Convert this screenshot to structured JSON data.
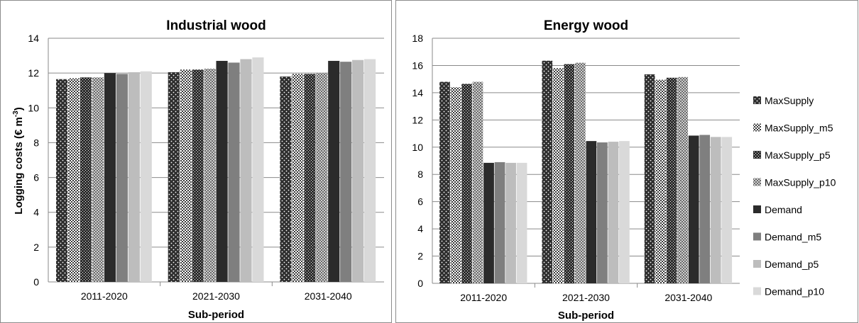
{
  "ylabel_main": "Logging costs (€ m",
  "ylabel_sup": "-3",
  "ylabel_end": ")",
  "legend": {
    "placement": "right",
    "entries": [
      "MaxSupply",
      "MaxSupply_m5",
      "MaxSupply_p5",
      "MaxSupply_p10",
      "Demand",
      "Demand_m5",
      "Demand_p5",
      "Demand_p10"
    ]
  },
  "series_style": [
    {
      "fill": "#2e2e2e",
      "pattern": "white-dots"
    },
    {
      "fill": "#4a4a4a",
      "pattern": "checker"
    },
    {
      "fill": "#2e2e2e",
      "pattern": "white-dots-small"
    },
    {
      "fill": "#5c5c5c",
      "pattern": "checker-light"
    },
    {
      "fill": "#2b2b2b",
      "pattern": "solid"
    },
    {
      "fill": "#7f7f7f",
      "pattern": "solid"
    },
    {
      "fill": "#bdbdbd",
      "pattern": "solid"
    },
    {
      "fill": "#d9d9d9",
      "pattern": "solid"
    }
  ],
  "chart_data": [
    {
      "type": "bar",
      "title": "Industrial wood",
      "xlabel": "Sub-period",
      "ylabel": "Logging costs (€ m-3)",
      "ylim": [
        0,
        14
      ],
      "ytick_step": 2,
      "yticks": [
        "0",
        "2",
        "4",
        "6",
        "8",
        "10",
        "12",
        "14"
      ],
      "grid": true,
      "categories": [
        "2011-2020",
        "2021-2030",
        "2031-2040"
      ],
      "series": [
        {
          "name": "MaxSupply",
          "values": [
            11.65,
            12.05,
            11.8
          ]
        },
        {
          "name": "MaxSupply_m5",
          "values": [
            11.7,
            12.2,
            11.95
          ]
        },
        {
          "name": "MaxSupply_p5",
          "values": [
            11.75,
            12.2,
            11.95
          ]
        },
        {
          "name": "MaxSupply_p10",
          "values": [
            11.75,
            12.25,
            12.0
          ]
        },
        {
          "name": "Demand",
          "values": [
            12.0,
            12.7,
            12.7
          ]
        },
        {
          "name": "Demand_m5",
          "values": [
            11.95,
            12.6,
            12.65
          ]
        },
        {
          "name": "Demand_p5",
          "values": [
            12.05,
            12.8,
            12.75
          ]
        },
        {
          "name": "Demand_p10",
          "values": [
            12.1,
            12.9,
            12.8
          ]
        }
      ]
    },
    {
      "type": "bar",
      "title": "Energy wood",
      "xlabel": "Sub-period",
      "ylabel": "",
      "ylim": [
        0,
        18
      ],
      "ytick_step": 2,
      "yticks": [
        "0",
        "2",
        "4",
        "6",
        "8",
        "10",
        "12",
        "14",
        "16",
        "18"
      ],
      "grid": true,
      "categories": [
        "2011-2020",
        "2021-2030",
        "2031-2040"
      ],
      "series": [
        {
          "name": "MaxSupply",
          "values": [
            14.8,
            16.35,
            15.35
          ]
        },
        {
          "name": "MaxSupply_m5",
          "values": [
            14.4,
            15.8,
            14.95
          ]
        },
        {
          "name": "MaxSupply_p5",
          "values": [
            14.65,
            16.1,
            15.1
          ]
        },
        {
          "name": "MaxSupply_p10",
          "values": [
            14.8,
            16.2,
            15.15
          ]
        },
        {
          "name": "Demand",
          "values": [
            8.85,
            10.45,
            10.85
          ]
        },
        {
          "name": "Demand_m5",
          "values": [
            8.9,
            10.35,
            10.9
          ]
        },
        {
          "name": "Demand_p5",
          "values": [
            8.85,
            10.4,
            10.75
          ]
        },
        {
          "name": "Demand_p10",
          "values": [
            8.85,
            10.45,
            10.75
          ]
        }
      ]
    }
  ]
}
